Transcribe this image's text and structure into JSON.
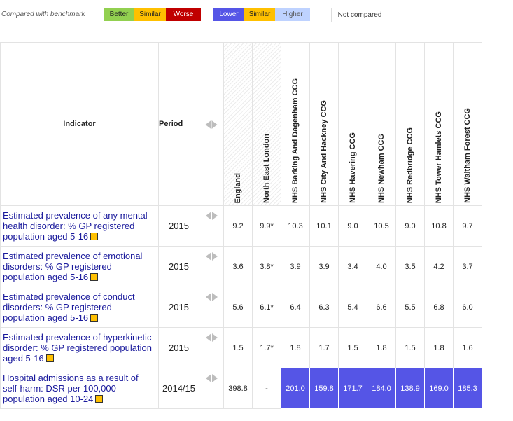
{
  "legend": {
    "caption": "Compared with benchmark",
    "better": "Better",
    "similar": "Similar",
    "worse": "Worse",
    "lower": "Lower",
    "similar2": "Similar",
    "higher": "Higher",
    "not_compared": "Not compared",
    "colors": {
      "better": "#92d050",
      "similar": "#ffc000",
      "worse": "#c00000",
      "lower": "#5555e6",
      "higher": "#bed2ff"
    }
  },
  "table": {
    "indicator_header": "Indicator",
    "period_header": "Period",
    "areas": [
      "England",
      "North East London",
      "NHS Barking And Dagenham CCG",
      "NHS City And Hackney CCG",
      "NHS Havering CCG",
      "NHS Newham CCG",
      "NHS Redbridge CCG",
      "NHS Tower Hamlets CCG",
      "NHS Waltham Forest CCG"
    ],
    "rows": [
      {
        "indicator": "Estimated prevalence of any mental health disorder: % GP registered population aged 5-16",
        "period": "2015",
        "values": [
          "9.2",
          "9.9*",
          "10.3",
          "10.1",
          "9.0",
          "10.5",
          "9.0",
          "10.8",
          "9.7"
        ]
      },
      {
        "indicator": "Estimated prevalence of emotional disorders: % GP registered population aged 5-16",
        "period": "2015",
        "values": [
          "3.6",
          "3.8*",
          "3.9",
          "3.9",
          "3.4",
          "4.0",
          "3.5",
          "4.2",
          "3.7"
        ]
      },
      {
        "indicator": "Estimated prevalence of conduct disorders: % GP registered population aged 5-16",
        "period": "2015",
        "values": [
          "5.6",
          "6.1*",
          "6.4",
          "6.3",
          "5.4",
          "6.6",
          "5.5",
          "6.8",
          "6.0"
        ]
      },
      {
        "indicator": "Estimated prevalence of hyperkinetic disorder: % GP registered population aged 5-16",
        "period": "2015",
        "values": [
          "1.5",
          "1.7*",
          "1.8",
          "1.7",
          "1.5",
          "1.8",
          "1.5",
          "1.8",
          "1.6"
        ]
      },
      {
        "indicator": "Hospital admissions as a result of self-harm: DSR per 100,000 population aged 10-24",
        "period": "2014/15",
        "values": [
          "398.8",
          "-",
          "201.0",
          "159.8",
          "171.7",
          "184.0",
          "138.9",
          "169.0",
          "185.3"
        ],
        "comparison": [
          "none",
          "none",
          "lower",
          "lower",
          "lower",
          "lower",
          "lower",
          "lower",
          "lower"
        ]
      }
    ]
  }
}
